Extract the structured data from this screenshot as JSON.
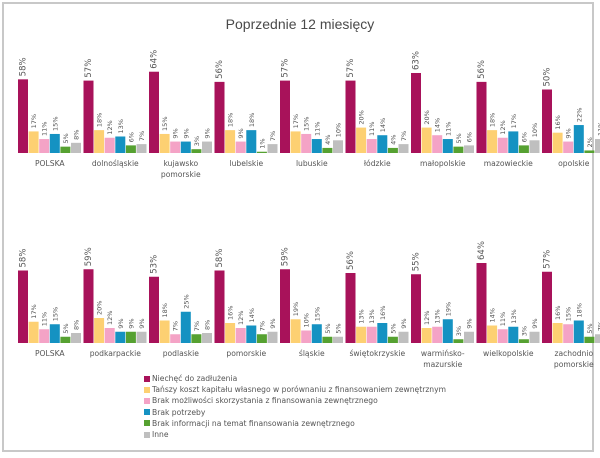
{
  "chart_data": [
    {
      "type": "bar",
      "title": "Poprzednie 12 miesięcy",
      "xlabel": "",
      "ylabel": "",
      "ylim": [
        0,
        70
      ],
      "grid": false,
      "value_format": "percent",
      "categories": [
        "POLSKA",
        "dolnośląskie",
        "kujawsko pomorskie",
        "lubelskie",
        "lubuskie",
        "łódzkie",
        "małopolskie",
        "mazowieckie",
        "opolskie"
      ],
      "series": [
        {
          "name": "Niechęć do zadłużenia",
          "values": [
            58,
            57,
            64,
            56,
            57,
            57,
            63,
            56,
            50
          ]
        },
        {
          "name": "Tańszy koszt kapitału własnego w porównaniu z finansowaniem zewnętrznym",
          "values": [
            17,
            18,
            15,
            18,
            17,
            20,
            20,
            18,
            16
          ]
        },
        {
          "name": "Brak możliwości skorzystania z finansowania zewnętrznego",
          "values": [
            11,
            12,
            9,
            9,
            15,
            11,
            14,
            12,
            9
          ]
        },
        {
          "name": "Brak potrzeby",
          "values": [
            15,
            13,
            9,
            18,
            11,
            14,
            11,
            17,
            22
          ]
        },
        {
          "name": "Brak informacji na temat finansowania zewnętrznego",
          "values": [
            5,
            6,
            3,
            1,
            4,
            4,
            5,
            6,
            2
          ]
        },
        {
          "name": "Inne",
          "values": [
            8,
            7,
            9,
            7,
            10,
            7,
            6,
            10,
            11
          ]
        }
      ]
    },
    {
      "type": "bar",
      "title": "",
      "xlabel": "",
      "ylabel": "",
      "ylim": [
        0,
        70
      ],
      "grid": false,
      "value_format": "percent",
      "categories": [
        "POLSKA",
        "podkarpackie",
        "podlaskie",
        "pomorskie",
        "śląskie",
        "świętokrzyskie",
        "warmińsko-mazurskie",
        "wielkopolskie",
        "zachodnio pomorskie"
      ],
      "series": [
        {
          "name": "Niechęć do zadłużenia",
          "values": [
            58,
            59,
            53,
            58,
            59,
            56,
            55,
            64,
            57
          ]
        },
        {
          "name": "Tańszy koszt kapitału własnego w porównaniu z finansowaniem zewnętrznym",
          "values": [
            17,
            20,
            18,
            16,
            19,
            13,
            12,
            14,
            16
          ]
        },
        {
          "name": "Brak możliwości skorzystania z finansowania zewnętrznego",
          "values": [
            11,
            12,
            7,
            12,
            10,
            13,
            13,
            11,
            15
          ]
        },
        {
          "name": "Brak potrzeby",
          "values": [
            15,
            9,
            25,
            14,
            15,
            16,
            19,
            13,
            18
          ]
        },
        {
          "name": "Brak informacji na temat finansowania zewnętrznego",
          "values": [
            5,
            9,
            7,
            7,
            5,
            5,
            3,
            3,
            5
          ]
        },
        {
          "name": "Inne",
          "values": [
            8,
            9,
            8,
            9,
            5,
            9,
            9,
            9,
            7
          ]
        }
      ]
    }
  ],
  "header": {
    "title": "Poprzednie 12 miesięcy"
  },
  "legend": {
    "placement": "bottom-center",
    "items": [
      {
        "label": "Niechęć do zadłużenia",
        "color": "#a8125a"
      },
      {
        "label": "Tańszy koszt kapitału własnego w porównaniu z finansowaniem zewnętrznym",
        "color": "#fdd072"
      },
      {
        "label": "Brak możliwości skorzystania z finansowania zewnętrznego",
        "color": "#f4a3c6"
      },
      {
        "label": "Brak potrzeby",
        "color": "#1592c2"
      },
      {
        "label": "Brak informacji na temat finansowania zewnętrznego",
        "color": "#56a131"
      },
      {
        "label": "Inne",
        "color": "#bfbfbf"
      }
    ]
  }
}
